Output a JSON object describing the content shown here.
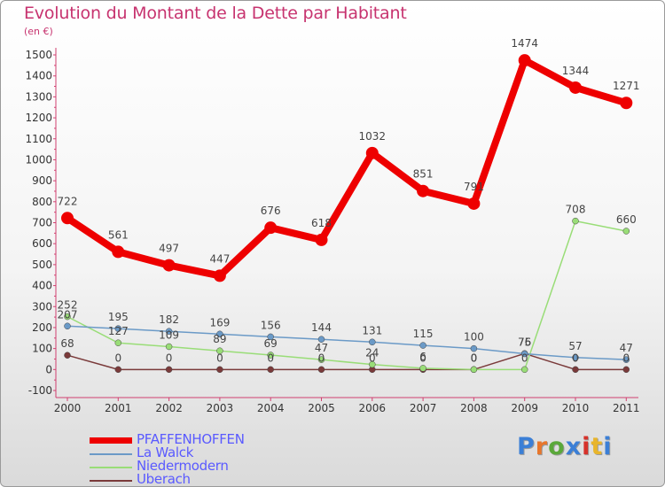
{
  "title": "Evolution du Montant de la Dette par Habitant",
  "unit": "(en €)",
  "chart_data": {
    "type": "line",
    "x": [
      "2000",
      "2001",
      "2002",
      "2003",
      "2004",
      "2005",
      "2006",
      "2007",
      "2008",
      "2009",
      "2010",
      "2011"
    ],
    "ylim": [
      -100,
      1500
    ],
    "yticks": [
      -100,
      0,
      100,
      200,
      300,
      400,
      500,
      600,
      700,
      800,
      900,
      1000,
      1100,
      1200,
      1300,
      1400,
      1500
    ],
    "series": [
      {
        "name": "PFAFFENHOFFEN",
        "color": "#ee0000",
        "values": [
          722,
          561,
          497,
          447,
          676,
          618,
          1032,
          851,
          791,
          1474,
          1344,
          1271
        ]
      },
      {
        "name": "La Walck",
        "color": "#6b9ac7",
        "values": [
          207,
          195,
          182,
          169,
          156,
          144,
          131,
          115,
          100,
          75,
          57,
          47
        ]
      },
      {
        "name": "Niedermodern",
        "color": "#99dd77",
        "values": [
          252,
          127,
          109,
          89,
          69,
          47,
          24,
          6,
          0,
          0,
          708,
          660
        ]
      },
      {
        "name": "Uberach",
        "color": "#7a3a3a",
        "values": [
          68,
          0,
          0,
          0,
          0,
          0,
          0,
          0,
          0,
          76,
          0,
          0
        ]
      }
    ],
    "grid": false,
    "legend_position": "bottom-left"
  },
  "legend": [
    "PFAFFENHOFFEN",
    "La Walck",
    "Niedermodern",
    "Uberach"
  ],
  "logo": {
    "text": "Proxiti",
    "colors": [
      "#3b7fd6",
      "#e8762b",
      "#5aa83a",
      "#3b7fd6",
      "#d6322b",
      "#e8b52b",
      "#3b7fd6"
    ]
  }
}
